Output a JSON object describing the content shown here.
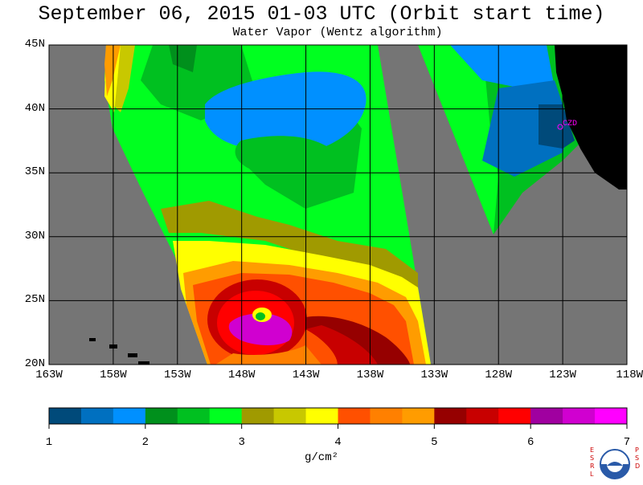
{
  "header": {
    "title": "September 06, 2015  01-03 UTC  (Orbit start time)",
    "subtitle": "Water Vapor (Wentz algorithm)"
  },
  "map": {
    "lat_labels": [
      "45N",
      "40N",
      "35N",
      "30N",
      "25N",
      "20N"
    ],
    "lon_labels": [
      "163W",
      "158W",
      "153W",
      "148W",
      "143W",
      "138W",
      "133W",
      "128W",
      "123W",
      "118W"
    ],
    "station_label": "CZD",
    "colors": {
      "no_data": "#757575",
      "land": "#000000",
      "grid": "#000000",
      "station": "#ff00ff"
    }
  },
  "colorbar": {
    "ticks": [
      "1",
      "2",
      "3",
      "4",
      "5",
      "6",
      "7"
    ],
    "unit_label": "g/cm²",
    "colors": [
      "#004a7a",
      "#0070c0",
      "#0090ff",
      "#00901c",
      "#00c020",
      "#00ff20",
      "#a09a00",
      "#c8c800",
      "#ffff00",
      "#ff5000",
      "#ff8000",
      "#ff9c00",
      "#960000",
      "#c80000",
      "#ff0000",
      "#a000a0",
      "#d000d0",
      "#ff00ff"
    ]
  },
  "logo": {
    "left_letters": "ESRL",
    "right_letters": "PSD",
    "icon": "noaa-logo-icon"
  }
}
